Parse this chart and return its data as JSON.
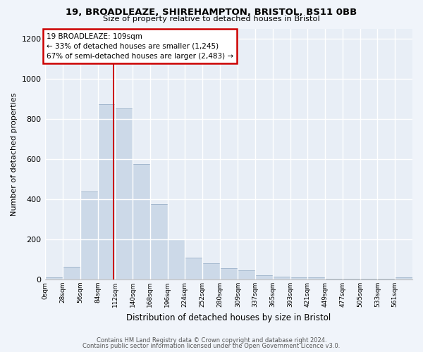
{
  "title1": "19, BROADLEAZE, SHIREHAMPTON, BRISTOL, BS11 0BB",
  "title2": "Size of property relative to detached houses in Bristol",
  "xlabel": "Distribution of detached houses by size in Bristol",
  "ylabel": "Number of detached properties",
  "bar_color": "#ccd9e8",
  "bar_edge_color": "#9ab0c8",
  "background_color": "#e8eef6",
  "fig_background_color": "#f0f4fa",
  "grid_color": "#ffffff",
  "bin_labels": [
    "0sqm",
    "28sqm",
    "56sqm",
    "84sqm",
    "112sqm",
    "140sqm",
    "168sqm",
    "196sqm",
    "224sqm",
    "252sqm",
    "280sqm",
    "309sqm",
    "337sqm",
    "365sqm",
    "393sqm",
    "421sqm",
    "449sqm",
    "477sqm",
    "505sqm",
    "533sqm",
    "561sqm"
  ],
  "bin_edges": [
    0,
    28,
    56,
    84,
    112,
    140,
    168,
    196,
    224,
    252,
    280,
    309,
    337,
    365,
    393,
    421,
    449,
    477,
    505,
    533,
    561,
    589
  ],
  "values": [
    10,
    65,
    440,
    875,
    855,
    575,
    375,
    200,
    110,
    80,
    55,
    45,
    20,
    15,
    10,
    10,
    5,
    5,
    5,
    5,
    10
  ],
  "property_size": 109,
  "annotation_line1": "19 BROADLEAZE: 109sqm",
  "annotation_line2": "← 33% of detached houses are smaller (1,245)",
  "annotation_line3": "67% of semi-detached houses are larger (2,483) →",
  "annotation_box_color": "#ffffff",
  "annotation_border_color": "#cc0000",
  "vline_color": "#cc0000",
  "ylim": [
    0,
    1250
  ],
  "yticks": [
    0,
    200,
    400,
    600,
    800,
    1000,
    1200
  ],
  "footer_line1": "Contains HM Land Registry data © Crown copyright and database right 2024.",
  "footer_line2": "Contains public sector information licensed under the Open Government Licence v3.0."
}
